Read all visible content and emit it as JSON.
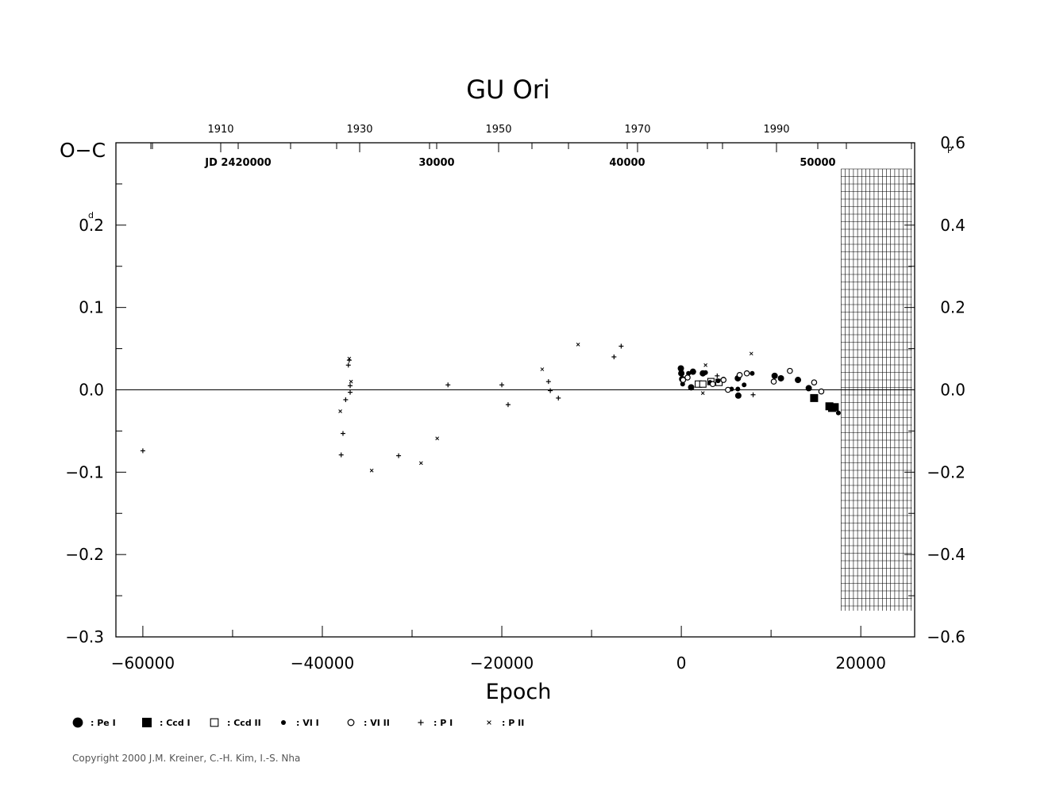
{
  "chart_data": {
    "type": "scatter",
    "title": "GU Ori",
    "xlabel": "Epoch",
    "ylabel": "O−C",
    "xlim": [
      -63000,
      26000
    ],
    "ylim": [
      -0.3,
      0.3
    ],
    "x_ticks": [
      "−60000",
      "−40000",
      "−20000",
      "0",
      "20000"
    ],
    "y_ticks_left": [
      "0.2",
      "0.1",
      "0.0",
      "−0.1",
      "−0.2",
      "−0.3"
    ],
    "y_unit_left": "d",
    "y_ticks_right": [
      "0.6",
      "0.4",
      "0.2",
      "0.0",
      "−0.2",
      "−0.4",
      "−0.6"
    ],
    "y_unit_right": "P",
    "top_year_ticks": [
      "1910",
      "1930",
      "1950",
      "1970",
      "1990"
    ],
    "top_jd_ticks": [
      "JD 2420000",
      "30000",
      "40000",
      "50000"
    ],
    "series": [
      {
        "name": "Pe I",
        "marker": "big-filled-circle",
        "points": [
          [
            -50,
            0.026
          ],
          [
            0,
            0.02
          ],
          [
            100,
            0.013
          ],
          [
            1100,
            0.003
          ],
          [
            1300,
            0.022
          ],
          [
            2400,
            0.02
          ],
          [
            6300,
            0.014
          ],
          [
            6350,
            -0.007
          ],
          [
            10400,
            0.017
          ],
          [
            11100,
            0.014
          ],
          [
            13000,
            0.012
          ],
          [
            14200,
            0.002
          ]
        ]
      },
      {
        "name": "Ccd I",
        "marker": "filled-square",
        "points": [
          [
            14800,
            -0.01
          ],
          [
            16500,
            -0.02
          ],
          [
            16800,
            -0.022
          ],
          [
            17100,
            -0.021
          ]
        ]
      },
      {
        "name": "Ccd II",
        "marker": "open-square",
        "points": [
          [
            1900,
            0.007
          ],
          [
            2400,
            0.007
          ],
          [
            3300,
            0.01
          ],
          [
            4200,
            0.009
          ]
        ]
      },
      {
        "name": "VI I",
        "marker": "small-filled-circle",
        "points": [
          [
            50,
            0.021
          ],
          [
            150,
            0.007
          ],
          [
            800,
            0.02
          ],
          [
            2700,
            0.021
          ],
          [
            3200,
            0.009
          ],
          [
            4100,
            0.011
          ],
          [
            4700,
            0.013
          ],
          [
            5600,
            0.001
          ],
          [
            6300,
            0.001
          ],
          [
            7000,
            0.006
          ],
          [
            7900,
            0.02
          ],
          [
            17500,
            -0.028
          ]
        ]
      },
      {
        "name": "VI II",
        "marker": "open-circle",
        "points": [
          [
            200,
            0.012
          ],
          [
            700,
            0.015
          ],
          [
            3500,
            0.007
          ],
          [
            4700,
            0.012
          ],
          [
            5200,
            0.0
          ],
          [
            6500,
            0.018
          ],
          [
            7300,
            0.02
          ],
          [
            10300,
            0.01
          ],
          [
            12100,
            0.023
          ],
          [
            14800,
            0.009
          ],
          [
            15600,
            -0.002
          ]
        ]
      },
      {
        "name": "P I",
        "marker": "plus",
        "points": [
          [
            -60000,
            -0.074
          ],
          [
            -37900,
            -0.079
          ],
          [
            -37700,
            -0.053
          ],
          [
            -37400,
            -0.012
          ],
          [
            -37100,
            0.03
          ],
          [
            -37000,
            0.036
          ],
          [
            -36900,
            0.005
          ],
          [
            -36900,
            -0.003
          ],
          [
            -31500,
            -0.08
          ],
          [
            -26000,
            0.006
          ],
          [
            -20000,
            0.006
          ],
          [
            -19300,
            -0.018
          ],
          [
            -14800,
            0.01
          ],
          [
            -14600,
            -0.001
          ],
          [
            -13700,
            -0.01
          ],
          [
            -7500,
            0.04
          ],
          [
            -6700,
            0.053
          ],
          [
            4000,
            0.017
          ],
          [
            8000,
            -0.006
          ]
        ]
      },
      {
        "name": "P II",
        "marker": "x",
        "points": [
          [
            -38000,
            -0.026
          ],
          [
            -37000,
            0.038
          ],
          [
            -36800,
            0.01
          ],
          [
            -34500,
            -0.098
          ],
          [
            -29000,
            -0.089
          ],
          [
            -27200,
            -0.059
          ],
          [
            -15500,
            0.025
          ],
          [
            -11500,
            0.055
          ],
          [
            2400,
            -0.004
          ],
          [
            2700,
            0.03
          ],
          [
            7800,
            0.044
          ]
        ]
      }
    ],
    "legend": [
      {
        "symbol": "big-filled-circle",
        "label": ": Pe I"
      },
      {
        "symbol": "filled-square",
        "label": ": Ccd I"
      },
      {
        "symbol": "open-square",
        "label": ": Ccd II"
      },
      {
        "symbol": "small-filled-circle",
        "label": ": VI I"
      },
      {
        "symbol": "open-circle",
        "label": ": VI II"
      },
      {
        "symbol": "plus",
        "label": ": P I"
      },
      {
        "symbol": "x",
        "label": ": P II"
      }
    ],
    "legend_placement": "bottom",
    "grid": false,
    "hatched_region": {
      "x_from": 17800,
      "x_to": 25700
    }
  },
  "copyright": "Copyright 2000 J.M. Kreiner, C.-H. Kim, I.-S. Nha"
}
